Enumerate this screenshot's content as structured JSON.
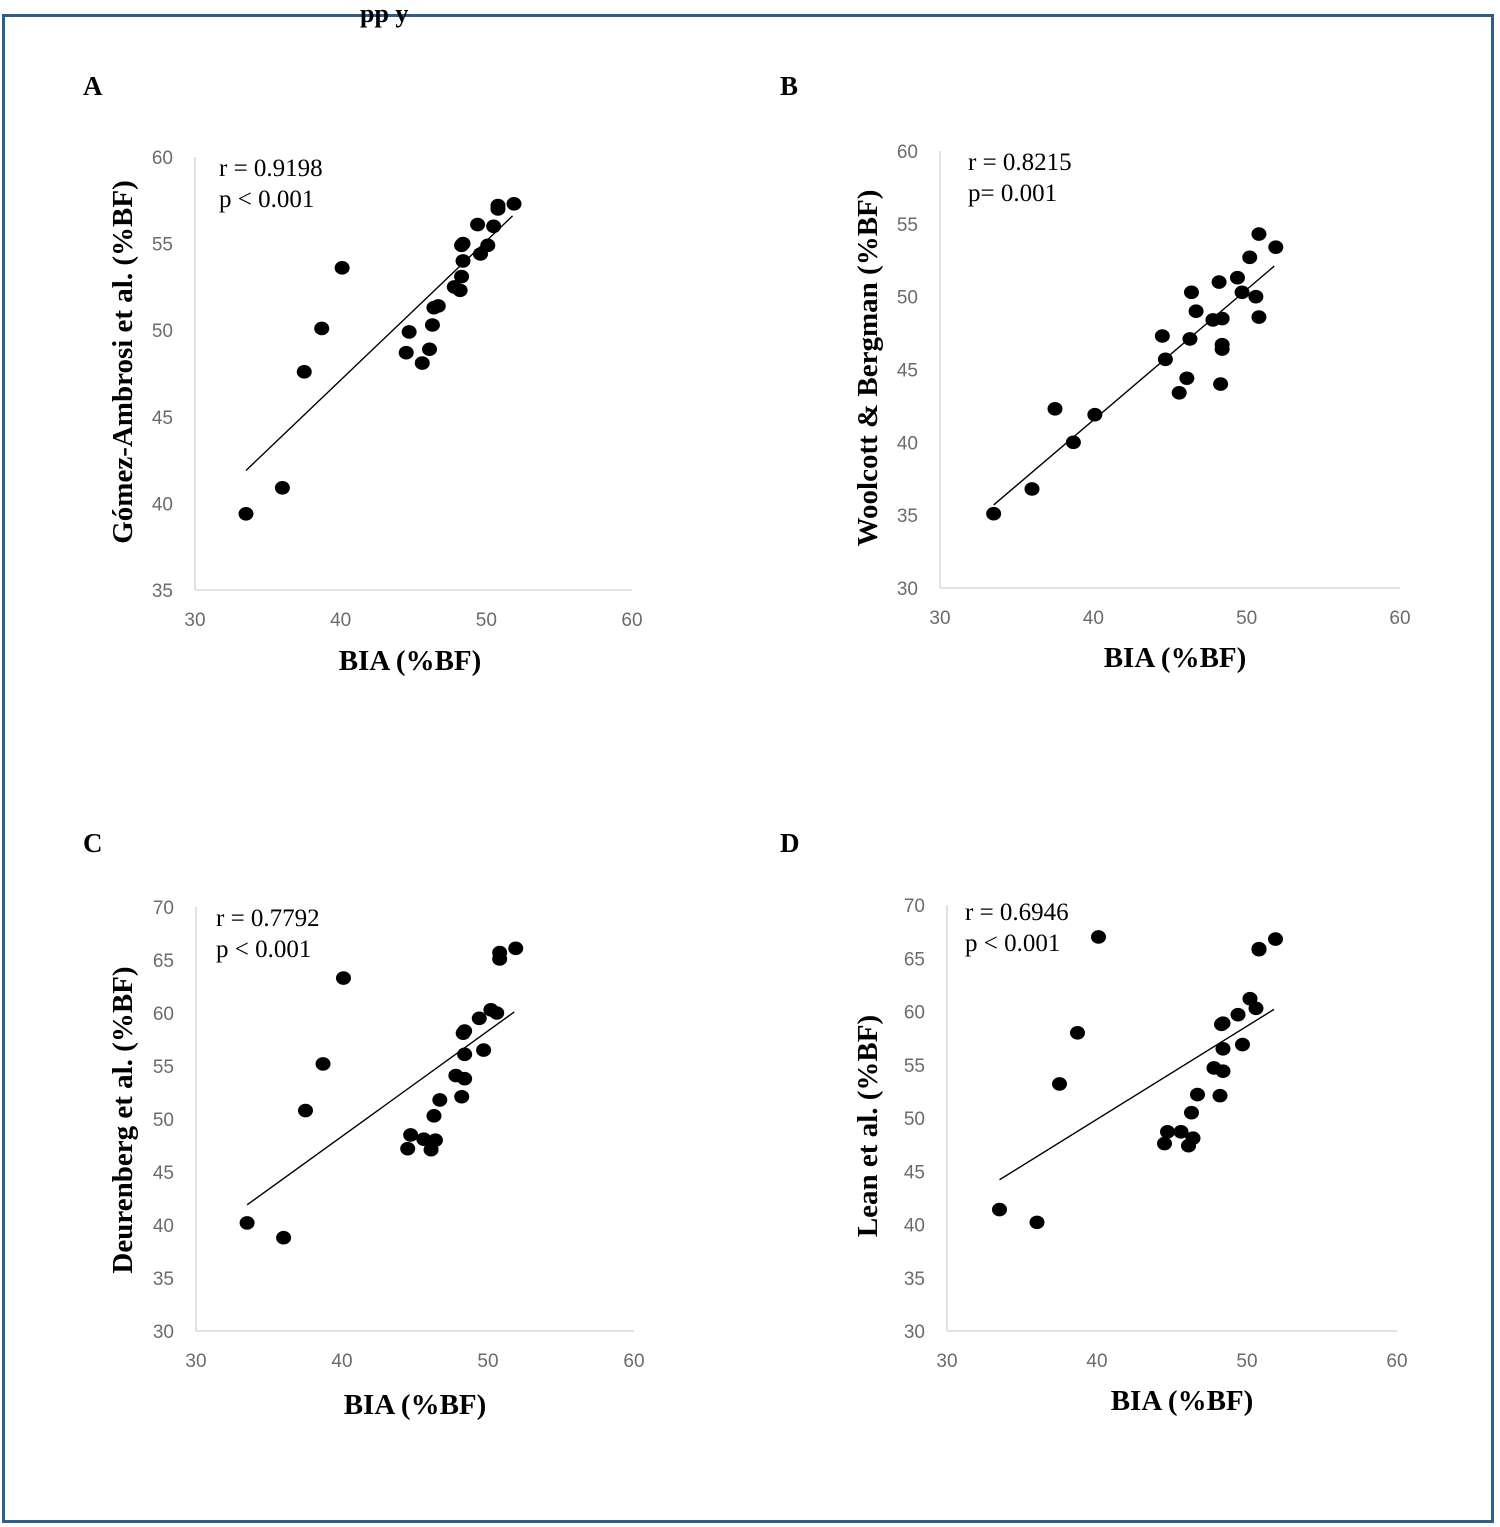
{
  "header_fragment": "pp              y",
  "chart_data": [
    {
      "type": "scatter",
      "panel": "A",
      "xlabel": "BIA (%BF)",
      "ylabel": "Gómez-Ambrosi et al. (%BF)",
      "xlim": [
        30,
        60
      ],
      "ylim": [
        35,
        60
      ],
      "xticks": [
        30,
        40,
        50,
        60
      ],
      "yticks": [
        35,
        40,
        45,
        50,
        55,
        60
      ],
      "stat_lines": [
        "r = 0.9198",
        "p < 0.001"
      ],
      "trendline": [
        [
          33.5,
          41.9
        ],
        [
          51.8,
          56.6
        ]
      ],
      "points": [
        [
          33.5,
          39.4
        ],
        [
          36.0,
          40.9
        ],
        [
          37.5,
          47.6
        ],
        [
          38.7,
          50.1
        ],
        [
          40.1,
          53.6
        ],
        [
          44.5,
          48.7
        ],
        [
          44.7,
          49.9
        ],
        [
          45.6,
          48.1
        ],
        [
          46.1,
          48.9
        ],
        [
          46.3,
          50.3
        ],
        [
          46.4,
          51.3
        ],
        [
          46.7,
          51.4
        ],
        [
          47.8,
          52.5
        ],
        [
          48.2,
          52.3
        ],
        [
          48.3,
          53.1
        ],
        [
          48.4,
          54.0
        ],
        [
          48.3,
          54.9
        ],
        [
          48.4,
          55.0
        ],
        [
          49.4,
          56.1
        ],
        [
          49.6,
          54.4
        ],
        [
          50.1,
          54.9
        ],
        [
          50.5,
          56.0
        ],
        [
          50.8,
          57.0
        ],
        [
          50.8,
          57.2
        ],
        [
          51.9,
          57.3
        ]
      ]
    },
    {
      "type": "scatter",
      "panel": "B",
      "xlabel": "BIA (%BF)",
      "ylabel": "Woolcott & Bergman (%BF)",
      "xlim": [
        30,
        60
      ],
      "ylim": [
        30,
        60
      ],
      "xticks": [
        30,
        40,
        50,
        60
      ],
      "yticks": [
        30,
        35,
        40,
        45,
        50,
        55,
        60
      ],
      "stat_lines": [
        "r = 0.8215",
        "p= 0.001"
      ],
      "trendline": [
        [
          33.5,
          35.7
        ],
        [
          51.8,
          52.1
        ]
      ],
      "points": [
        [
          33.5,
          35.1
        ],
        [
          36.0,
          36.8
        ],
        [
          37.5,
          42.3
        ],
        [
          38.7,
          40.0
        ],
        [
          40.1,
          41.9
        ],
        [
          44.5,
          47.3
        ],
        [
          44.7,
          45.7
        ],
        [
          45.6,
          43.4
        ],
        [
          46.1,
          44.4
        ],
        [
          46.3,
          47.1
        ],
        [
          46.4,
          50.3
        ],
        [
          46.7,
          49.0
        ],
        [
          47.8,
          48.4
        ],
        [
          48.2,
          51.0
        ],
        [
          48.3,
          44.0
        ],
        [
          48.4,
          46.4
        ],
        [
          48.4,
          46.7
        ],
        [
          48.4,
          48.5
        ],
        [
          49.4,
          51.3
        ],
        [
          49.7,
          50.3
        ],
        [
          50.2,
          52.7
        ],
        [
          50.6,
          50.0
        ],
        [
          50.8,
          48.6
        ],
        [
          50.8,
          54.3
        ],
        [
          51.9,
          53.4
        ]
      ]
    },
    {
      "type": "scatter",
      "panel": "C",
      "xlabel": "BIA (%BF)",
      "ylabel": "Deurenberg et al. (%BF)",
      "xlim": [
        30,
        60
      ],
      "ylim": [
        30,
        70
      ],
      "xticks": [
        30,
        40,
        50,
        60
      ],
      "yticks": [
        30,
        35,
        40,
        45,
        50,
        55,
        60,
        65,
        70
      ],
      "stat_lines": [
        "r =  0.7792",
        "p < 0.001"
      ],
      "trendline": [
        [
          33.5,
          41.9
        ],
        [
          51.8,
          60.1
        ]
      ],
      "points": [
        [
          33.5,
          40.2
        ],
        [
          36.0,
          38.8
        ],
        [
          37.5,
          50.8
        ],
        [
          38.7,
          55.2
        ],
        [
          40.1,
          63.3
        ],
        [
          44.5,
          47.2
        ],
        [
          44.7,
          48.5
        ],
        [
          45.6,
          48.1
        ],
        [
          46.1,
          47.1
        ],
        [
          46.3,
          50.3
        ],
        [
          46.4,
          48.0
        ],
        [
          46.7,
          51.8
        ],
        [
          47.8,
          54.1
        ],
        [
          48.2,
          52.1
        ],
        [
          48.3,
          58.1
        ],
        [
          48.4,
          53.8
        ],
        [
          48.4,
          56.1
        ],
        [
          48.4,
          58.3
        ],
        [
          49.4,
          59.5
        ],
        [
          49.7,
          56.5
        ],
        [
          50.2,
          60.3
        ],
        [
          50.6,
          60.0
        ],
        [
          50.8,
          65.1
        ],
        [
          50.8,
          65.7
        ],
        [
          51.9,
          66.1
        ]
      ]
    },
    {
      "type": "scatter",
      "panel": "D",
      "xlabel": "BIA (%BF)",
      "ylabel": "Lean et al. (%BF)",
      "xlim": [
        30,
        60
      ],
      "ylim": [
        30,
        70
      ],
      "xticks": [
        30,
        40,
        50,
        60
      ],
      "yticks": [
        30,
        35,
        40,
        45,
        50,
        55,
        60,
        65,
        70
      ],
      "stat_lines": [
        "r = 0.6946",
        "p < 0.001"
      ],
      "trendline": [
        [
          33.5,
          44.2
        ],
        [
          51.8,
          60.2
        ]
      ],
      "points": [
        [
          33.5,
          41.4
        ],
        [
          36.0,
          40.2
        ],
        [
          37.5,
          53.2
        ],
        [
          38.7,
          58.0
        ],
        [
          40.1,
          67.0
        ],
        [
          44.5,
          47.6
        ],
        [
          44.7,
          48.7
        ],
        [
          45.6,
          48.7
        ],
        [
          46.1,
          47.4
        ],
        [
          46.3,
          50.5
        ],
        [
          46.4,
          48.1
        ],
        [
          46.7,
          52.2
        ],
        [
          47.8,
          54.7
        ],
        [
          48.2,
          52.1
        ],
        [
          48.3,
          58.8
        ],
        [
          48.4,
          54.4
        ],
        [
          48.4,
          56.5
        ],
        [
          48.4,
          58.9
        ],
        [
          49.4,
          59.7
        ],
        [
          49.7,
          56.9
        ],
        [
          50.2,
          61.2
        ],
        [
          50.6,
          60.3
        ],
        [
          50.8,
          65.8
        ],
        [
          50.8,
          65.9
        ],
        [
          51.9,
          66.8
        ]
      ]
    }
  ]
}
